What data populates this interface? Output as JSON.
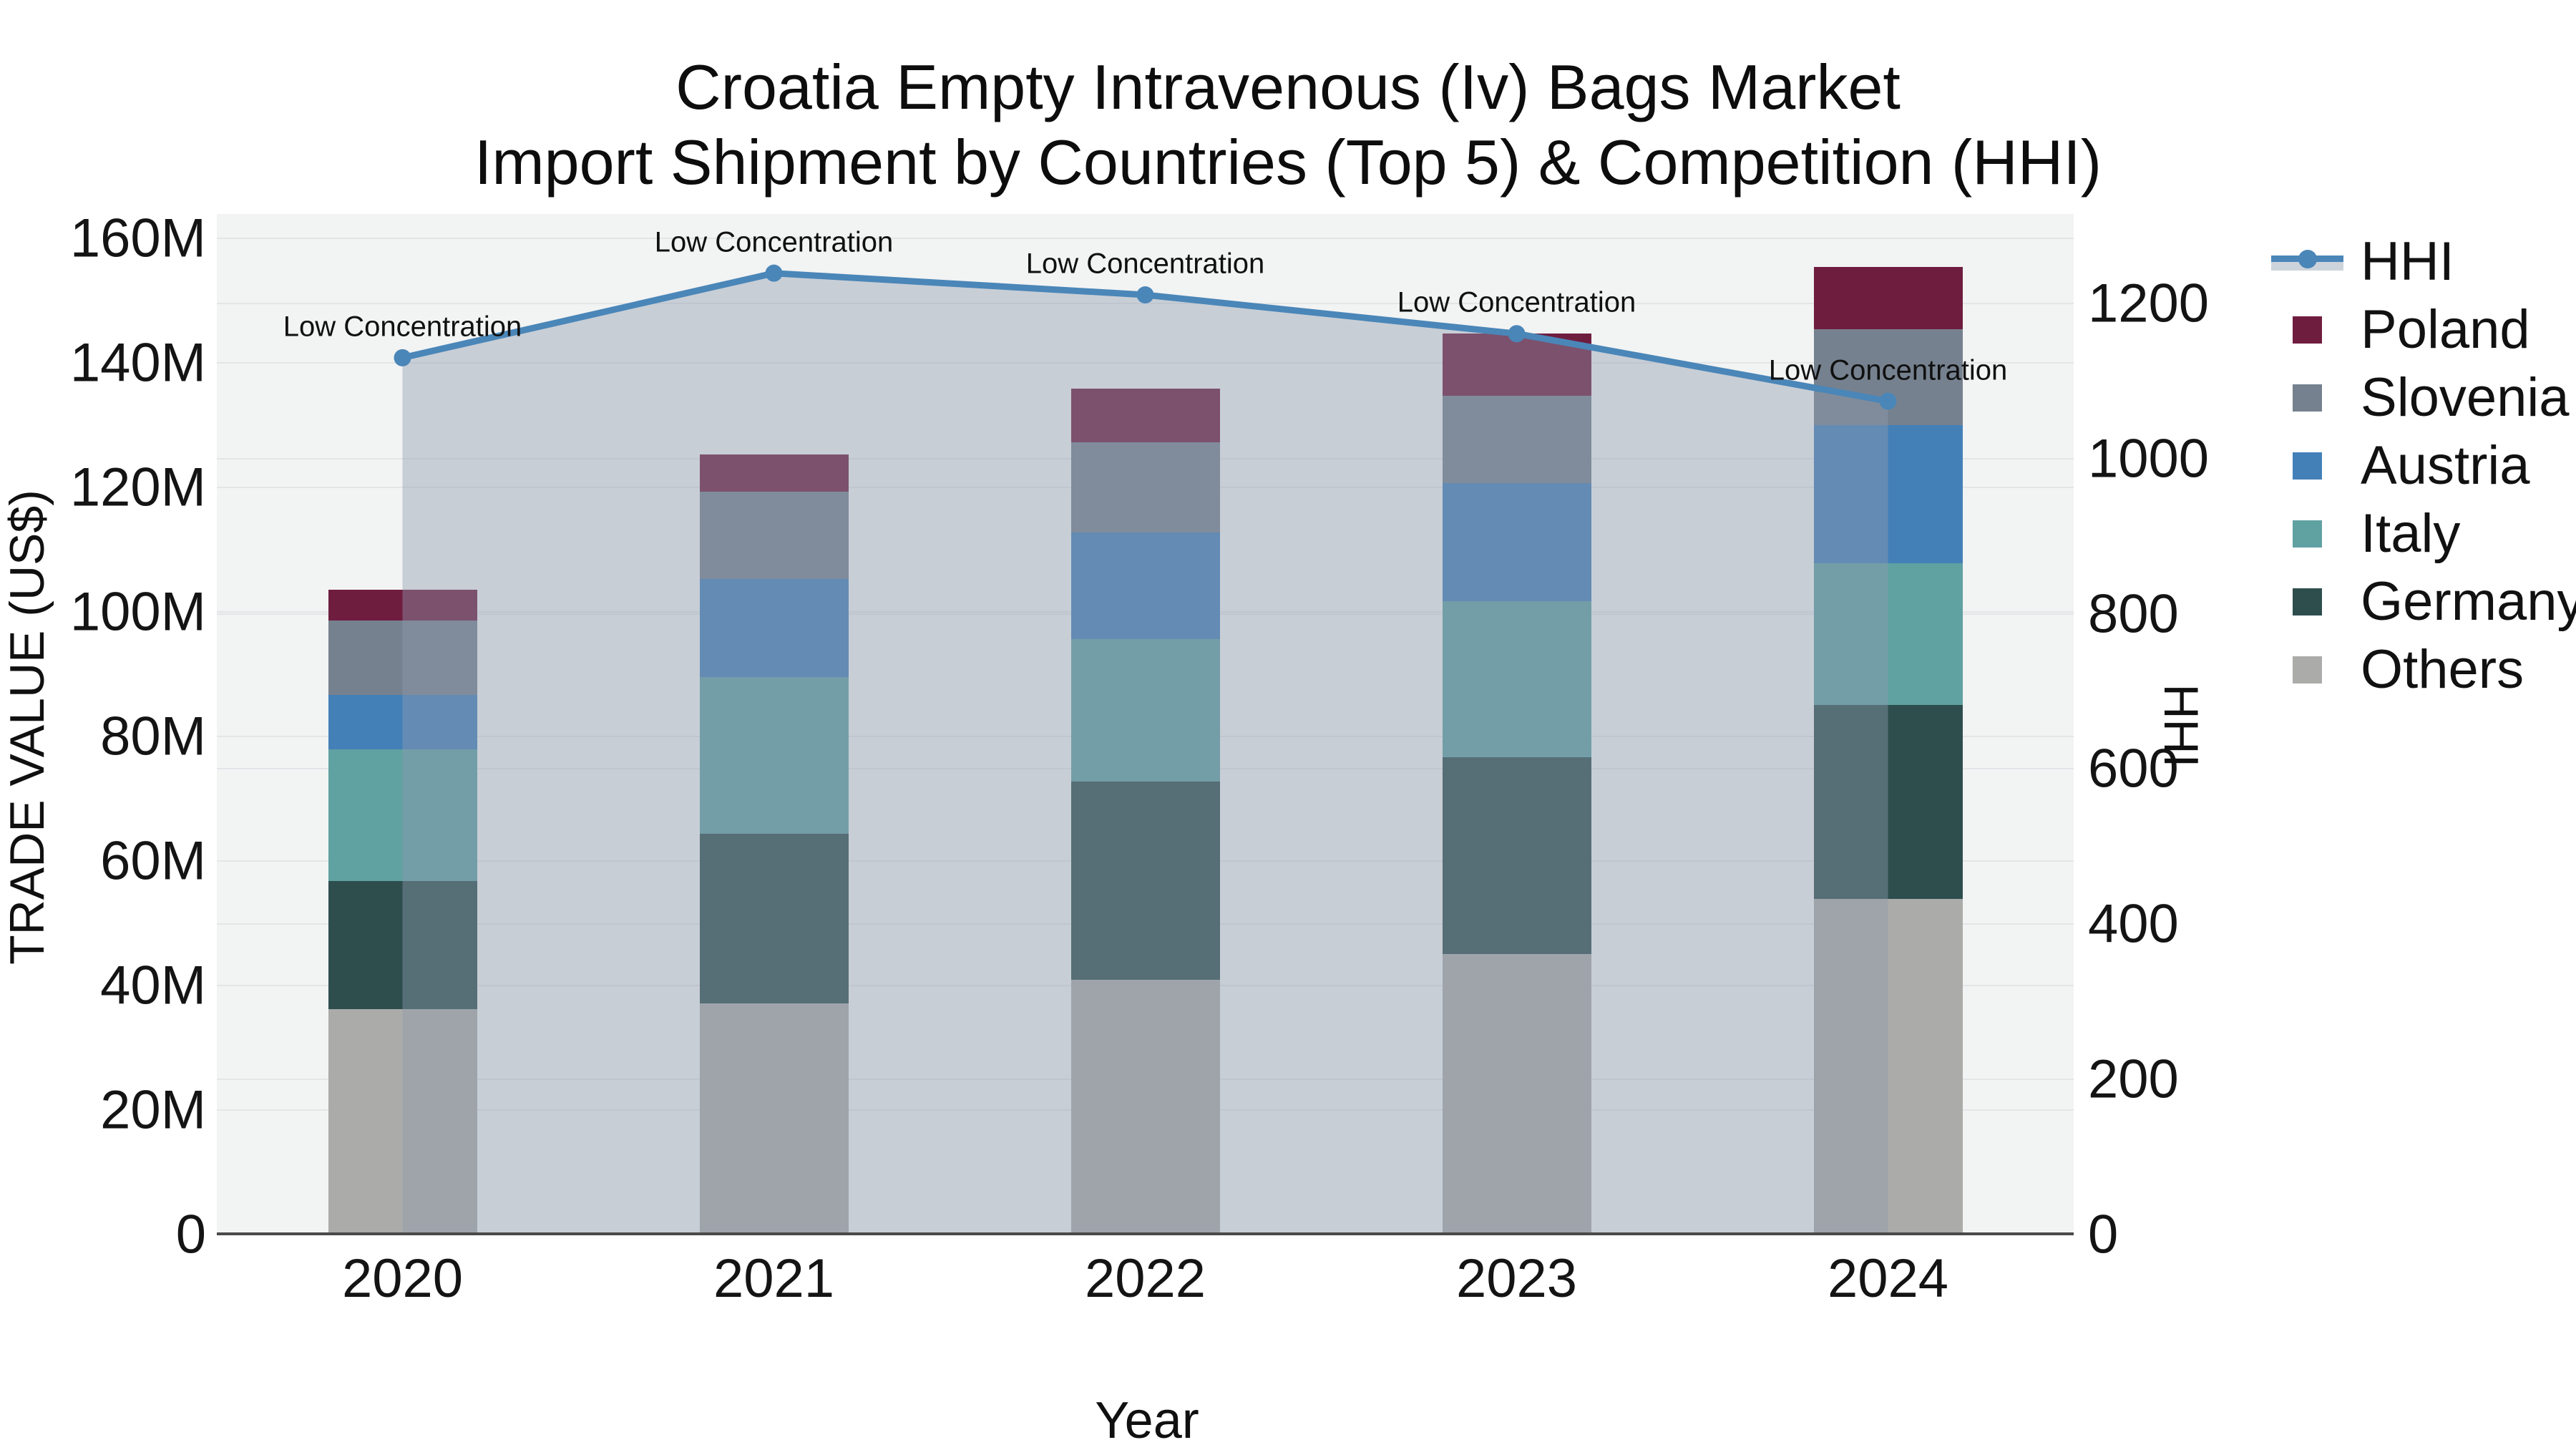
{
  "title": {
    "line1": "Croatia Empty Intravenous (Iv) Bags Market",
    "line2": "Import Shipment by Countries (Top 5) & Competition (HHI)"
  },
  "axes": {
    "y_left": {
      "title": "TRADE VALUE (US$)",
      "tick_labels": [
        "0",
        "20M",
        "40M",
        "60M",
        "80M",
        "100M",
        "120M",
        "140M",
        "160M"
      ],
      "tick_values": [
        0,
        20,
        40,
        60,
        80,
        100,
        120,
        140,
        160
      ]
    },
    "y_right": {
      "title": "HHI",
      "tick_labels": [
        "0",
        "200",
        "400",
        "600",
        "800",
        "1000",
        "1200"
      ],
      "tick_values": [
        0,
        200,
        400,
        600,
        800,
        1000,
        1200
      ]
    },
    "x": {
      "title": "Year"
    }
  },
  "legend_order": [
    "HHI",
    "Poland",
    "Slovenia",
    "Austria",
    "Italy",
    "Germany",
    "Others"
  ],
  "colors": {
    "hhi_line": "#4A86B8",
    "hhi_fill": "rgba(142,155,174,0.42)",
    "plot_background": "#F2F3F3",
    "gridline": "#E3E5E7",
    "Poland": "#6F1D3F",
    "Slovenia": "#76818F",
    "Austria": "#4480B8",
    "Italy": "#60A1A2",
    "Germany": "#2E4E4E",
    "Others": "#ABABA9"
  },
  "chart_data": {
    "type": "stacked-bar-with-line",
    "categories": [
      "2020",
      "2021",
      "2022",
      "2023",
      "2024"
    ],
    "bar_unit": "M US$",
    "series": [
      {
        "name": "Others",
        "values": [
          36.2,
          37.1,
          40.9,
          45.1,
          53.9
        ],
        "color": "#ABABA9"
      },
      {
        "name": "Germany",
        "values": [
          20.6,
          27.3,
          31.9,
          31.6,
          31.2
        ],
        "color": "#2E4E4E"
      },
      {
        "name": "Italy",
        "values": [
          21.1,
          25.1,
          22.8,
          25.0,
          22.7
        ],
        "color": "#60A1A2"
      },
      {
        "name": "Austria",
        "values": [
          8.8,
          15.8,
          17.2,
          19.0,
          22.2
        ],
        "color": "#4480B8"
      },
      {
        "name": "Slovenia",
        "values": [
          11.9,
          14.0,
          14.4,
          14.0,
          15.4
        ],
        "color": "#76818F"
      },
      {
        "name": "Poland",
        "values": [
          5.0,
          6.0,
          8.7,
          10.0,
          10.0
        ],
        "color": "#6F1D3F"
      }
    ],
    "bar_totals": [
      103.6,
      125.3,
      135.9,
      144.7,
      155.4
    ],
    "line_series": {
      "name": "HHI",
      "axis": "right",
      "values": [
        1130,
        1239,
        1211,
        1161,
        1074
      ],
      "color": "#4A86B8",
      "fill": "rgba(142,155,174,0.42)"
    },
    "annotations": [
      {
        "category": "2020",
        "text": "Low Concentration"
      },
      {
        "category": "2021",
        "text": "Low Concentration"
      },
      {
        "category": "2022",
        "text": "Low Concentration"
      },
      {
        "category": "2023",
        "text": "Low Concentration"
      },
      {
        "category": "2024",
        "text": "Low Concentration"
      }
    ],
    "ylim_left": [
      0,
      164
    ],
    "ylim_right": [
      0,
      1315
    ],
    "grid": true,
    "legend_position": "right"
  }
}
